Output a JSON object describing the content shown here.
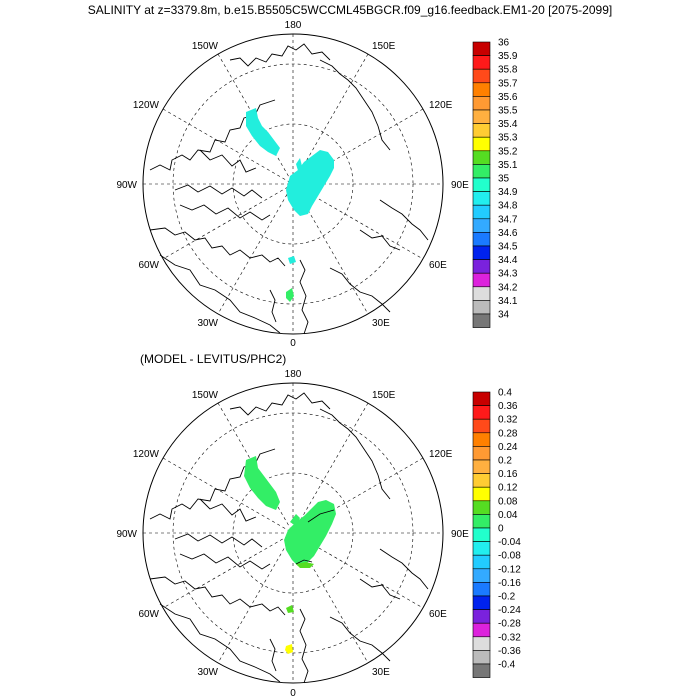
{
  "title": "SALINITY at z=3379.8m, b.e15.B5505C5WCCML45BGCR.f09_g16.feedback.EM1-20 [2075-2099]",
  "subtitle": "(MODEL - LEVITUS/PHC2)",
  "longitude_labels": {
    "top": "180",
    "bottom": "0",
    "left": "90W",
    "right": "90E",
    "upper_left_1": "150W",
    "upper_left_2": "120W",
    "lower_left_1": "60W",
    "lower_left_2": "30W",
    "upper_right_1": "150E",
    "upper_right_2": "120E",
    "lower_right_1": "60E",
    "lower_right_2": "30E"
  },
  "colorbar_top": {
    "labels": [
      "36",
      "35.9",
      "35.8",
      "35.7",
      "35.6",
      "35.5",
      "35.4",
      "35.3",
      "35.2",
      "35.1",
      "35",
      "34.9",
      "34.8",
      "34.7",
      "34.6",
      "34.5",
      "34.4",
      "34.3",
      "34.2",
      "34.1",
      "34"
    ],
    "colors": [
      "#c80000",
      "#ff1a1a",
      "#ff4a1a",
      "#ff8000",
      "#ff9a33",
      "#ffb040",
      "#ffcc33",
      "#ffff00",
      "#55dd22",
      "#33ee66",
      "#22ffcc",
      "#22eeee",
      "#22ccff",
      "#33aaff",
      "#1a7aff",
      "#0022ee",
      "#7a22dd",
      "#dd22dd",
      "#dddddd",
      "#bbbbbb",
      "#777777"
    ]
  },
  "colorbar_bottom": {
    "labels": [
      "0.4",
      "0.36",
      "0.32",
      "0.28",
      "0.24",
      "0.2",
      "0.16",
      "0.12",
      "0.08",
      "0.04",
      "0",
      "-0.04",
      "-0.08",
      "-0.12",
      "-0.16",
      "-0.2",
      "-0.24",
      "-0.28",
      "-0.32",
      "-0.36",
      "-0.4"
    ],
    "colors": [
      "#c80000",
      "#ff1a1a",
      "#ff4a1a",
      "#ff8000",
      "#ff9a33",
      "#ffb040",
      "#ffcc33",
      "#ffff00",
      "#55dd22",
      "#33ee66",
      "#22ffcc",
      "#22eeee",
      "#22ccff",
      "#33aaff",
      "#1a7aff",
      "#0022ee",
      "#7a22dd",
      "#dd22dd",
      "#dddddd",
      "#bbbbbb",
      "#777777"
    ]
  },
  "field_colors": {
    "top_patches": "#22eedd",
    "bottom_patches": "#33ee66",
    "bottom_small_yellow": "#ffff00"
  }
}
